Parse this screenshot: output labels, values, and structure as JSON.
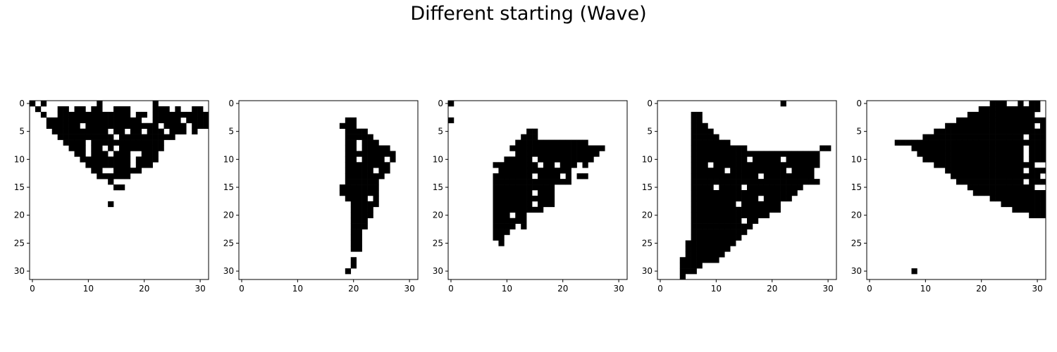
{
  "figure": {
    "title": "Different starting (Wave)",
    "background": "#ffffff",
    "cell_color": "#000000",
    "empty_color": "#ffffff"
  },
  "chart_data": [
    {
      "type": "heatmap",
      "grid_size": 32,
      "xticks": [
        0,
        10,
        20,
        30
      ],
      "yticks": [
        0,
        5,
        10,
        15,
        20,
        25,
        30
      ],
      "xlim": [
        -0.5,
        31.5
      ],
      "ylim": [
        31.5,
        -0.5
      ],
      "cmap": "gray_r",
      "rows": [
        "1.1.........1.........1.........",
        ".1...11.11.11..111....111.1..11.",
        "..1..1111111111111.11.1111111111",
        "...11111111111111111..11111.1111",
        "...111111.1111111111111.1111.111",
        "....1111111111.11.11.111.111.1..",
        ".....1111111111.1111111111......",
        "......1111.1111111111111........",
        ".......111.11.1.11111111........",
        "........11.111.111..111.........",
        ".........111111111.1111.........",
        "..........11111111.111..........",
        "...........11..11111............",
        "............111111..............",
        "..............1.................",
        "...............11...............",
        "................................",
        "................................",
        "..............1.................",
        "................................",
        "................................",
        "................................",
        "................................",
        "................................",
        "................................",
        "................................",
        "................................",
        "................................",
        "................................",
        "................................",
        "................................",
        "................................"
      ]
    },
    {
      "type": "heatmap",
      "grid_size": 32,
      "xticks": [
        0,
        10,
        20,
        30
      ],
      "yticks": [
        0,
        5,
        10,
        15,
        20,
        25,
        30
      ],
      "xlim": [
        -0.5,
        31.5
      ],
      "ylim": [
        31.5,
        -0.5
      ],
      "cmap": "gray_r",
      "rows": [
        "................................",
        "................................",
        "................................",
        "...................11...........",
        "..................111...........",
        "...................1111.........",
        "...................11111........",
        "...................11.111.......",
        "...................11.11111.....",
        "...................111111111....",
        "...................11.1111.1....",
        "...................11111111.....",
        "...................11111.11.....",
        "...................1111111......",
        "...................111111.......",
        "..................1111111.......",
        "..................1111111.......",
        "...................1111.1.......",
        "....................11111.......",
        "....................1111........",
        "....................1111........",
        "....................111.........",
        "....................111.........",
        "....................11..........",
        "....................11..........",
        "....................11..........",
        "....................11..........",
        "................................",
        "....................1...........",
        "....................1...........",
        "...................1............",
        "................................"
      ]
    },
    {
      "type": "heatmap",
      "grid_size": 32,
      "xticks": [
        0,
        10,
        20,
        30
      ],
      "yticks": [
        0,
        5,
        10,
        15,
        20,
        25,
        30
      ],
      "xlim": [
        -0.5,
        31.5
      ],
      "ylim": [
        31.5,
        -0.5
      ],
      "cmap": "gray_r",
      "rows": [
        "1...............................",
        "................................",
        "................................",
        "1...............................",
        "................................",
        "..............11................",
        ".............111................",
        "............1111111111111.......",
        "...........11111111111111111....",
        "............111111111111111.....",
        "..........11111.1111111111......",
        "........11111111.11.111.1.......",
        ".........1111111111111..........",
        "........1111111.1111.1.11.......",
        "........11111111111111..........",
        "........11111111111.............",
        "........1111111.111.............",
        "........11111111111.............",
        "........1111111.111.............",
        "........111111111...............",
        "........111.11..................",
        "........111111..................",
        "........1111.1..................",
        "........111.....................",
        "........11......................",
        ".........1......................",
        "................................",
        "................................",
        "................................",
        "................................",
        "................................",
        "................................"
      ]
    },
    {
      "type": "heatmap",
      "grid_size": 32,
      "xticks": [
        0,
        10,
        20,
        30
      ],
      "yticks": [
        0,
        5,
        10,
        15,
        20,
        25,
        30
      ],
      "xlim": [
        -0.5,
        31.5
      ],
      "ylim": [
        31.5,
        -0.5
      ],
      "cmap": "gray_r",
      "rows": [
        "......................1.........",
        "................................",
        "......11........................",
        "......11........................",
        "......111.......................",
        "......1111......................",
        "......11111.....................",
        "......1111111...................",
        "......1111111111.............11.",
        "......11111111111111111111111...",
        "......1111111111.11111.111111...",
        "......111.1111111111111111111...",
        "......111111.1111111111.1111....",
        "......111111111111.111111111....",
        "......11111111111111111111111...",
        "......1111.1111.1111111111......",
        "......1111111111111111111.......",
        "......111111111111.11111........",
        "......11111111.1111111..........",
        "......1111111111111111..........",
        "......11111111111111............",
        "......111111111.11..............",
        "......11111111111...............",
        "......1111111111................",
        "......111111111.................",
        ".....111111111..................",
        ".....11111111...................",
        ".....1111111....................",
        "....1111111.....................",
        "....1111........................",
        "....111.........................",
        "....1..........................."
      ]
    },
    {
      "type": "heatmap",
      "grid_size": 32,
      "xticks": [
        0,
        10,
        20,
        30
      ],
      "yticks": [
        0,
        5,
        10,
        15,
        20,
        25,
        30
      ],
      "xlim": [
        -0.5,
        31.5
      ],
      "ylim": [
        31.5,
        -0.5
      ],
      "cmap": "gray_r",
      "rows": [
        "......................111..1.11.",
        "....................11111111111.",
        "..................111111111111..",
        "................1111111111111111",
        "..............1111111111111111.1",
        "............11111111111111111111",
        "..........111111111111111111.111",
        ".....111111111111111111111111111",
        "........11111111111111111111.111",
        ".........1111111111111111111.111",
        "..........111111111111111111.111",
        "............111111111111111111..",
        "..............11111111111111.111",
        "...............1111111111111111.",
        "................111111111111.111",
        "..................111111111111..",
        "...................1111111111111",
        "......................1111111111",
        "........................11111111",
        "..........................111111",
        ".............................111",
        "................................",
        "................................",
        "................................",
        "................................",
        "................................",
        "................................",
        "................................",
        "................................",
        "................................",
        "........1.......................",
        "................................"
      ]
    }
  ]
}
